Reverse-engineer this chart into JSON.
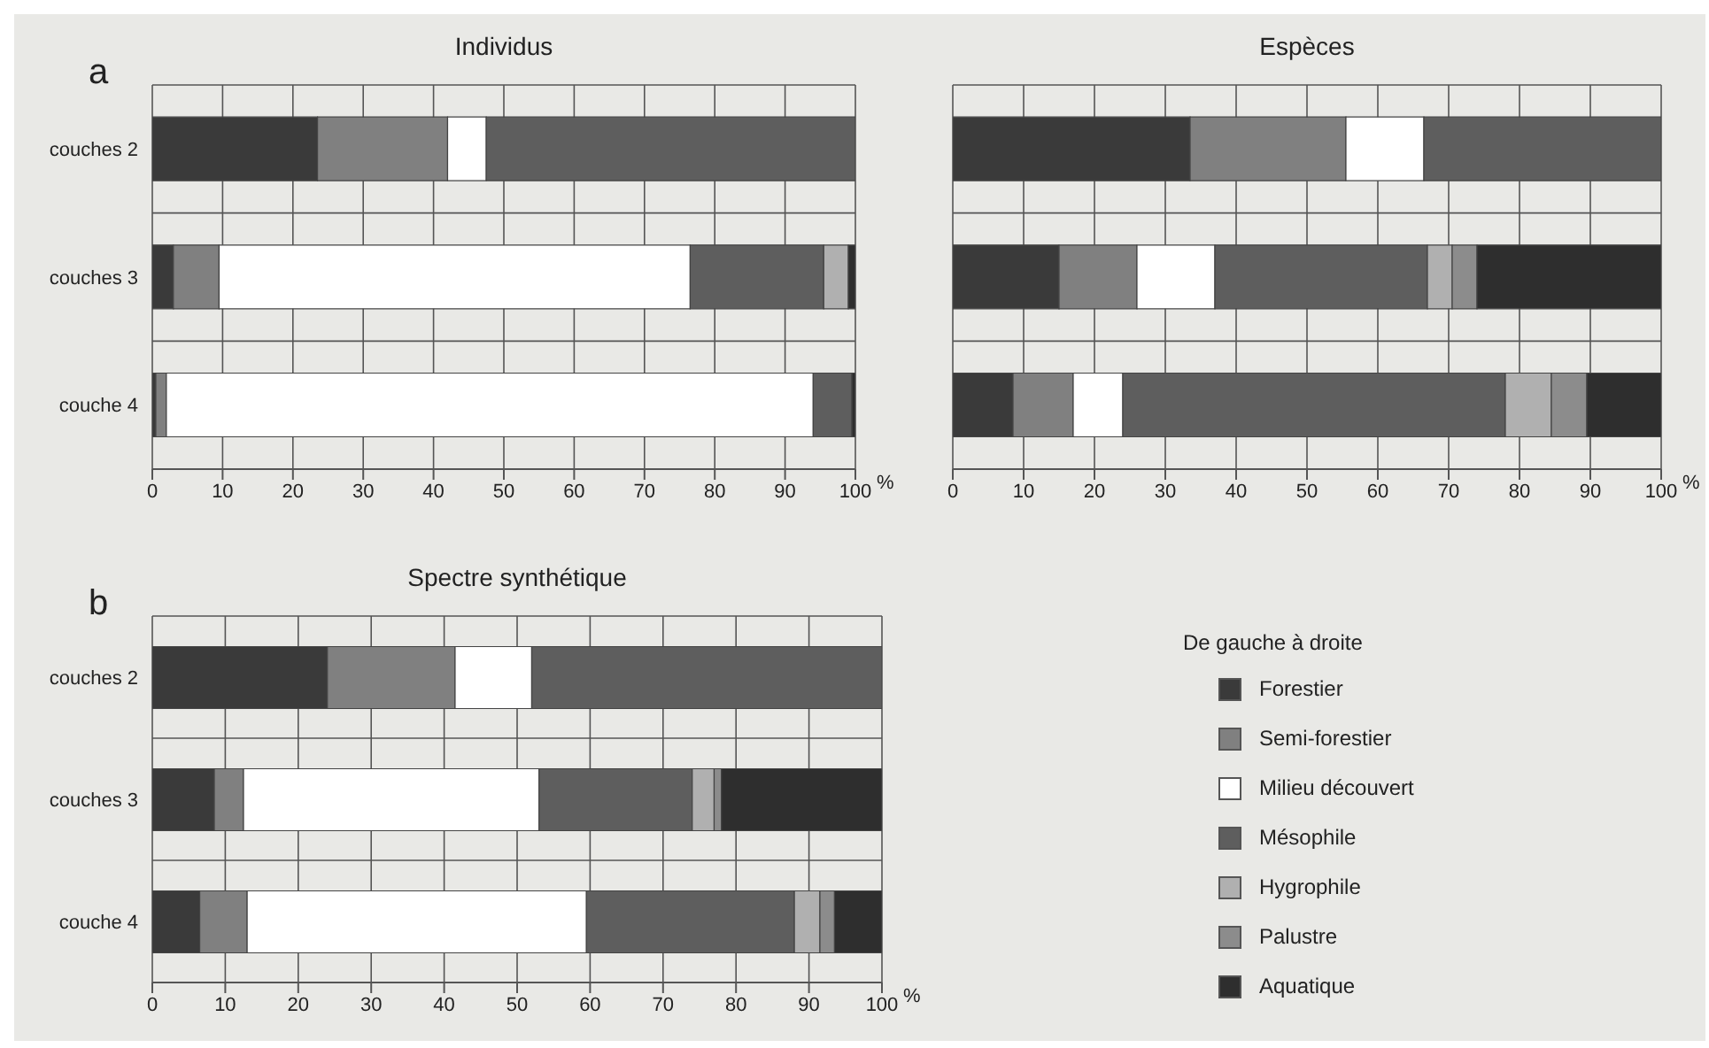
{
  "chart_data": [
    {
      "type": "bar",
      "orientation": "horizontal",
      "stacked": true,
      "title": "Individus",
      "xlabel": "%",
      "annotations": [
        "a"
      ],
      "categories": [
        "couches 2",
        "couches 3",
        "couche 4"
      ],
      "xlim": [
        0,
        100
      ],
      "xticks": [
        0,
        10,
        20,
        30,
        40,
        50,
        60,
        70,
        80,
        90,
        100
      ],
      "grid": true,
      "tick_labels": "xy",
      "series": [
        {
          "color": "#3a3a3a",
          "values": [
            23.5,
            3,
            0.5
          ]
        },
        {
          "color": "#808080",
          "values": [
            18.5,
            6.5,
            1.5
          ]
        },
        {
          "color": "#ffffff",
          "values": [
            5.5,
            67,
            92
          ]
        },
        {
          "color": "#5e5e5e",
          "values": [
            52.5,
            19,
            5.5
          ]
        },
        {
          "color": "#b0b0b0",
          "values": [
            0,
            3.5,
            0
          ]
        },
        {
          "color": "#8c8c8c",
          "values": [
            0,
            0,
            0
          ]
        },
        {
          "color": "#2e2e2e",
          "values": [
            0,
            1,
            0.5
          ]
        }
      ]
    },
    {
      "type": "bar",
      "orientation": "horizontal",
      "stacked": true,
      "title": "Espèces",
      "xlabel": "%",
      "categories": [
        null,
        null,
        null
      ],
      "xlim": [
        0,
        100
      ],
      "xticks": [
        0,
        10,
        20,
        30,
        40,
        50,
        60,
        70,
        80,
        90,
        100
      ],
      "grid": true,
      "tick_labels": "x",
      "series": [
        {
          "color": "#3a3a3a",
          "values": [
            33.5,
            15,
            8.5
          ]
        },
        {
          "color": "#808080",
          "values": [
            22,
            11,
            8.5
          ]
        },
        {
          "color": "#ffffff",
          "values": [
            11,
            11,
            7
          ]
        },
        {
          "color": "#5e5e5e",
          "values": [
            33.5,
            30,
            54
          ]
        },
        {
          "color": "#b0b0b0",
          "values": [
            0,
            3.5,
            6.5
          ]
        },
        {
          "color": "#8c8c8c",
          "values": [
            0,
            3.5,
            5
          ]
        },
        {
          "color": "#2e2e2e",
          "values": [
            0,
            26,
            10.5
          ]
        }
      ]
    },
    {
      "type": "bar",
      "orientation": "horizontal",
      "stacked": true,
      "title": "Spectre synthétique",
      "xlabel": "%",
      "annotations": [
        "b"
      ],
      "legend_title": "De gauche à droite",
      "legend": "right",
      "categories": [
        "couches 2",
        "couches 3",
        "couche 4"
      ],
      "xlim": [
        0,
        100
      ],
      "xticks": [
        0,
        10,
        20,
        30,
        40,
        50,
        60,
        70,
        80,
        90,
        100
      ],
      "grid": true,
      "series": [
        {
          "name": "Forestier",
          "color": "#3a3a3a",
          "values": [
            24,
            8.5,
            6.5
          ]
        },
        {
          "name": "Semi-forestier",
          "color": "#808080",
          "values": [
            17.5,
            4,
            6.5
          ]
        },
        {
          "name": "Milieu découvert",
          "color": "#ffffff",
          "values": [
            10.5,
            40.5,
            46.5
          ]
        },
        {
          "name": "Mésophile",
          "color": "#5e5e5e",
          "values": [
            48,
            21,
            28.5
          ]
        },
        {
          "name": "Hygrophile",
          "color": "#b0b0b0",
          "values": [
            0,
            3,
            3.5
          ]
        },
        {
          "name": "Palustre",
          "color": "#8c8c8c",
          "values": [
            0,
            1,
            2
          ]
        },
        {
          "name": "Aquatique",
          "color": "#2e2e2e",
          "values": [
            0,
            22,
            6.5
          ]
        }
      ]
    }
  ]
}
